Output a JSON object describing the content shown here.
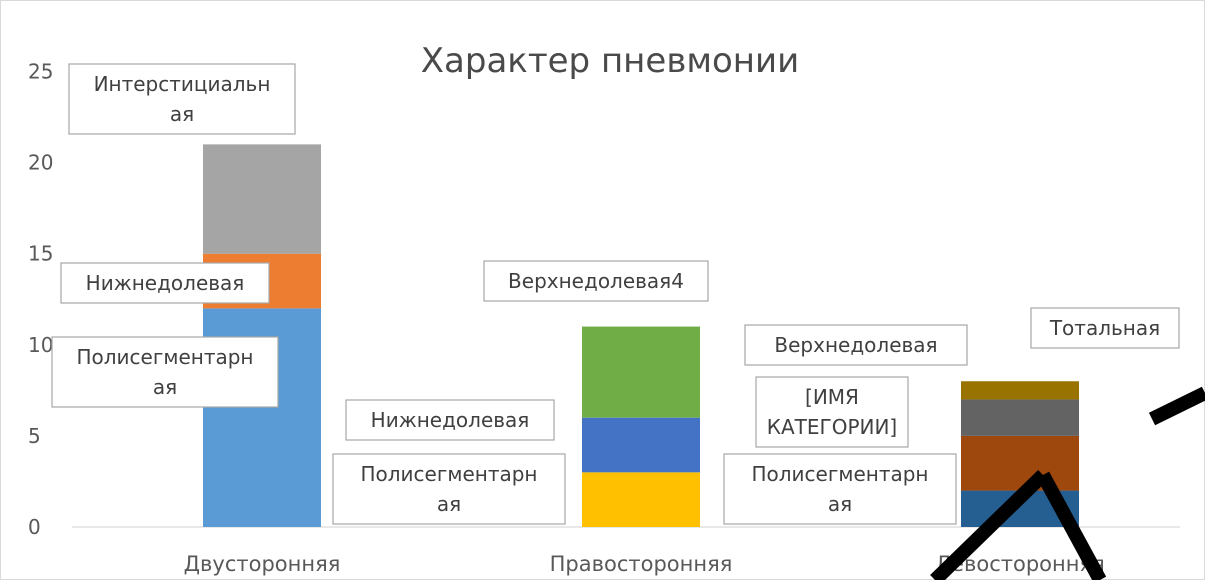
{
  "chart_data": {
    "type": "bar",
    "stacked": true,
    "title": "Характер пневмонии",
    "xlabel": "",
    "ylabel": "",
    "ylim": [
      0,
      25
    ],
    "yticks": [
      0,
      5,
      10,
      15,
      20,
      25
    ],
    "grid": false,
    "legend": "none",
    "categories": [
      "Двусторонняя",
      "Правосторонняя",
      "Левосторонняя"
    ],
    "bars": [
      {
        "category": "Двусторонняя",
        "segments": [
          {
            "value": 12,
            "color": "#5b9bd5",
            "label": [
              "Полисегментарн",
              "ая"
            ]
          },
          {
            "value": 3,
            "color": "#ed7d31",
            "label": [
              "Нижнедолевая"
            ]
          },
          {
            "value": 6,
            "color": "#a5a5a5",
            "label": [
              "Интерстициальн",
              "ая"
            ]
          }
        ]
      },
      {
        "category": "Правосторонняя",
        "segments": [
          {
            "value": 3,
            "color": "#ffc000",
            "label": [
              "Полисегментарн",
              "ая"
            ]
          },
          {
            "value": 3,
            "color": "#4472c4",
            "label": [
              "Нижнедолевая"
            ]
          },
          {
            "value": 5,
            "color": "#70ad47",
            "label": [
              "Верхнедолевая4"
            ]
          }
        ]
      },
      {
        "category": "Левосторонняя",
        "segments": [
          {
            "value": 2,
            "color": "#255e91",
            "label": [
              "Полисегментарн",
              "ая"
            ]
          },
          {
            "value": 3,
            "color": "#9e480e",
            "label": [
              "[ИМЯ",
              "КАТЕГОРИИ]"
            ]
          },
          {
            "value": 2,
            "color": "#636363",
            "label": [
              "Верхнедолевая"
            ]
          },
          {
            "value": 1,
            "color": "#997300",
            "label": [
              "Тотальная"
            ]
          }
        ]
      }
    ]
  }
}
